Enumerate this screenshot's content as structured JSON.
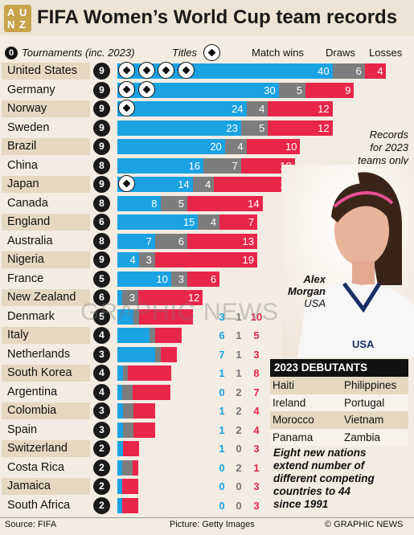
{
  "header": {
    "title": "FIFA Women’s World Cup team records",
    "logo_text": "AUNZ"
  },
  "column_headers": {
    "tournaments_badge": "0",
    "tournaments": "Tournaments (inc. 2023)",
    "titles": "Titles",
    "match_wins": "Match wins",
    "draws": "Draws",
    "losses": "Losses"
  },
  "annotations": {
    "records_note": [
      "Records",
      "for 2023",
      "teams only"
    ],
    "player_name": "Alex",
    "player_surname": "Morgan",
    "player_country": "USA",
    "watermark": "GRAPHIC NEWS"
  },
  "debutants": {
    "title": "2023 DEBUTANTS",
    "rows": [
      [
        "Haiti",
        "Philippines"
      ],
      [
        "Ireland",
        "Portugal"
      ],
      [
        "Morocco",
        "Vietnam"
      ],
      [
        "Panama",
        "Zambia"
      ]
    ],
    "note": [
      "Eight new nations",
      "extend number of",
      "different competing",
      "countries to 44",
      "since 1991"
    ]
  },
  "footer": {
    "source": "Source: FIFA",
    "picture": "Picture: Getty Images",
    "copyright": "© GRAPHIC NEWS"
  },
  "colors": {
    "wins": "#1aa2e3",
    "draws": "#7d7d7d",
    "losses": "#e8264a",
    "band": "#e6d8c0",
    "title_ball": "#ffffff"
  },
  "chart_data": {
    "type": "bar",
    "title": "FIFA Women’s World Cup team records",
    "stacked": true,
    "categories": [
      "United States",
      "Germany",
      "Norway",
      "Sweden",
      "Brazil",
      "China",
      "Japan",
      "Canada",
      "England",
      "Australia",
      "Nigeria",
      "France",
      "New Zealand",
      "Denmark",
      "Italy",
      "Netherlands",
      "South Korea",
      "Argentina",
      "Colombia",
      "Spain",
      "Switzerland",
      "Costa Rica",
      "Jamaica",
      "South Africa"
    ],
    "tournaments": [
      9,
      9,
      9,
      9,
      9,
      8,
      9,
      8,
      6,
      8,
      9,
      5,
      6,
      5,
      4,
      3,
      4,
      4,
      3,
      3,
      2,
      2,
      2,
      2
    ],
    "titles": [
      4,
      2,
      1,
      0,
      0,
      0,
      1,
      0,
      0,
      0,
      0,
      0,
      0,
      0,
      0,
      0,
      0,
      0,
      0,
      0,
      0,
      0,
      0,
      0
    ],
    "series": [
      {
        "name": "Match wins",
        "values": [
          40,
          30,
          24,
          23,
          20,
          16,
          14,
          8,
          15,
          7,
          4,
          10,
          0,
          3,
          6,
          7,
          1,
          0,
          1,
          1,
          1,
          0,
          0,
          0
        ]
      },
      {
        "name": "Draws",
        "values": [
          6,
          5,
          4,
          5,
          4,
          7,
          4,
          5,
          4,
          6,
          3,
          3,
          3,
          1,
          1,
          1,
          1,
          2,
          2,
          2,
          0,
          2,
          0,
          0
        ]
      },
      {
        "name": "Losses",
        "values": [
          4,
          9,
          12,
          12,
          10,
          10,
          15,
          14,
          7,
          13,
          19,
          6,
          12,
          10,
          5,
          3,
          8,
          7,
          4,
          4,
          3,
          1,
          3,
          3
        ]
      }
    ],
    "label_inside_bars_first_rows": 13
  }
}
